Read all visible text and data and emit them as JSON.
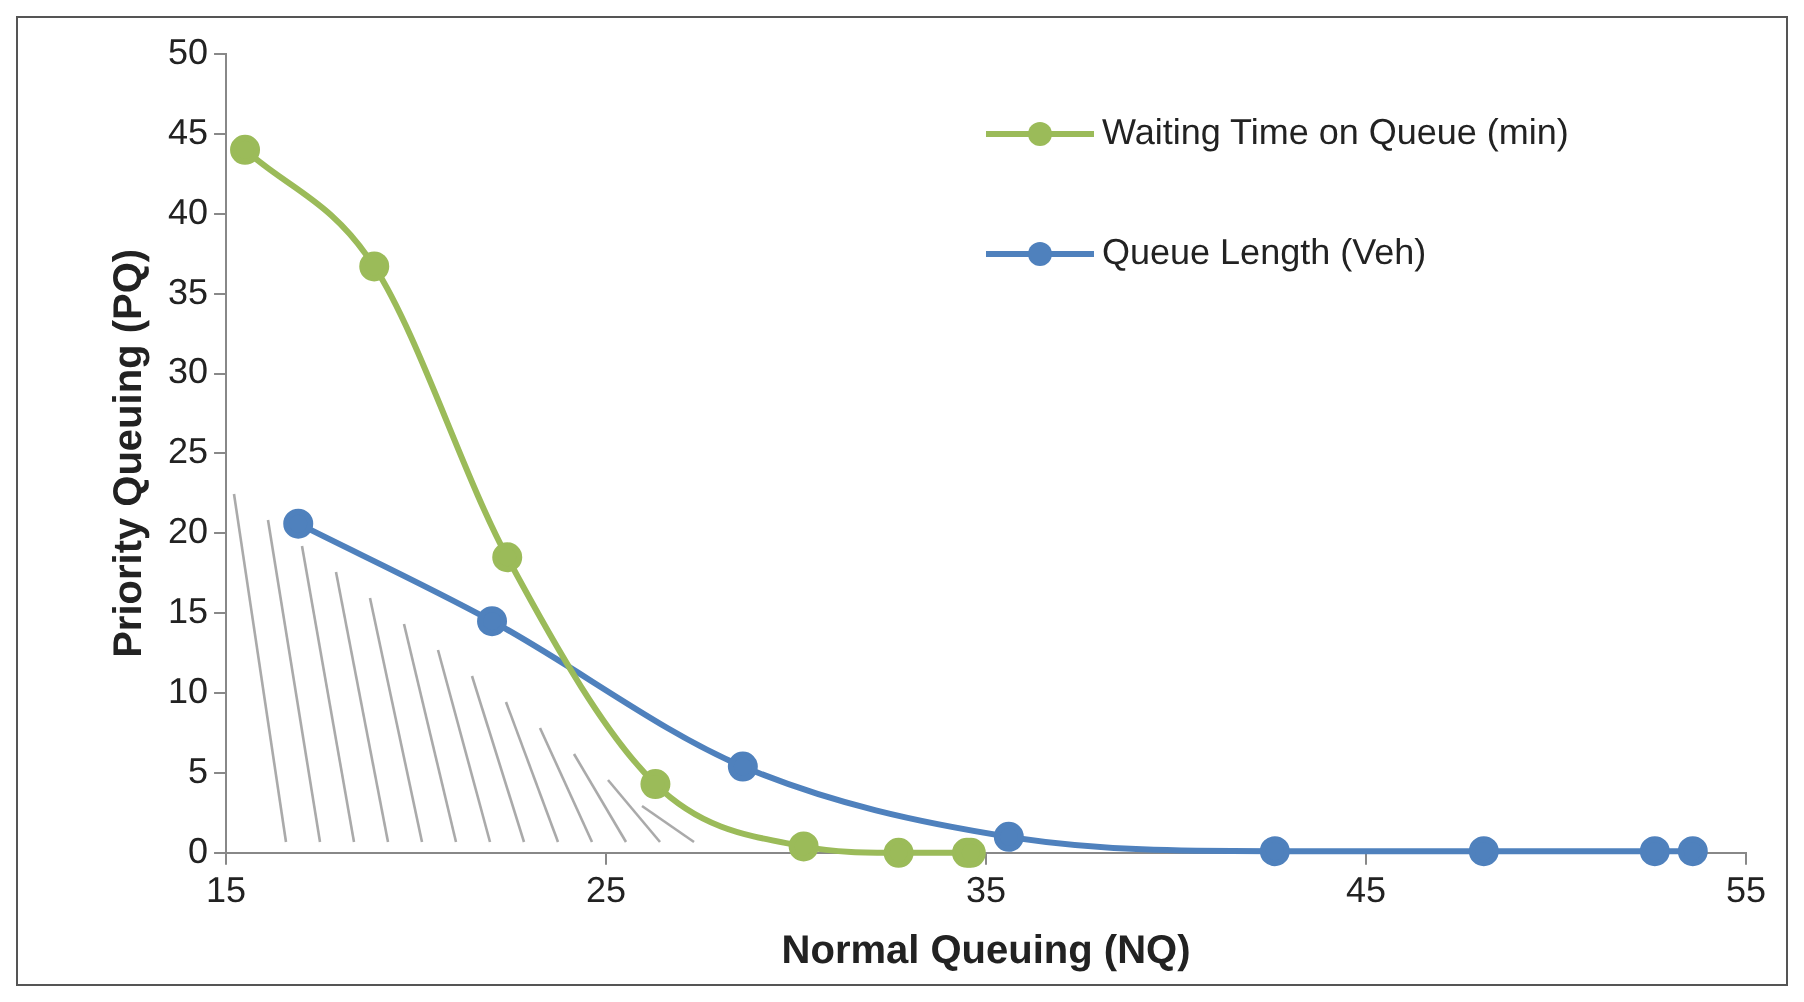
{
  "chart_data": {
    "type": "line",
    "xlabel": "Normal Queuing (NQ)",
    "ylabel": "Priority Queuing (PQ)",
    "xlim": [
      15,
      55
    ],
    "xticks": [
      15,
      25,
      35,
      45,
      55
    ],
    "ylim": [
      0,
      50
    ],
    "yticks": [
      0,
      5,
      10,
      15,
      20,
      25,
      30,
      35,
      40,
      45,
      50
    ],
    "grid": false,
    "legend": "top right",
    "marker": "circle",
    "line_style": "solid",
    "series": [
      {
        "name": "Waiting Time on Queue (min)",
        "color": "#9bbb59",
        "x": [
          15.5,
          18.9,
          22.4,
          26.3,
          30.2,
          32.7,
          34.5,
          34.6
        ],
        "values": [
          44,
          36.7,
          18.5,
          4.3,
          0.4,
          0,
          0,
          0
        ]
      },
      {
        "name": "Queue Length (Veh)",
        "color": "#4f81bd",
        "x": [
          16.9,
          22.0,
          28.6,
          35.6,
          42.6,
          48.1,
          52.6,
          53.6
        ],
        "values": [
          20.6,
          14.5,
          5.4,
          1.0,
          0.1,
          0.1,
          0.1,
          0.1
        ]
      }
    ]
  }
}
